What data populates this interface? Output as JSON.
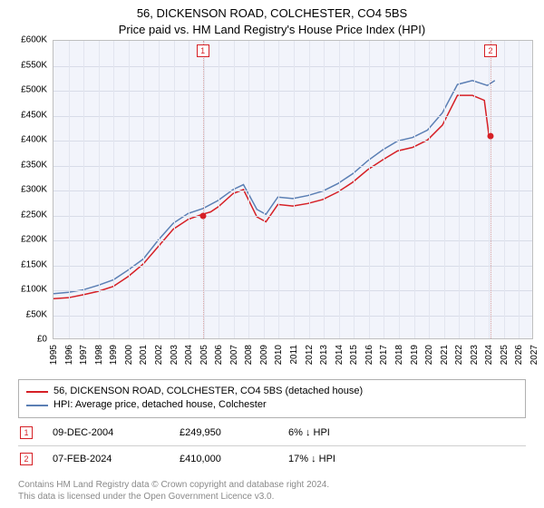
{
  "title": {
    "line1": "56, DICKENSON ROAD, COLCHESTER, CO4 5BS",
    "line2": "Price paid vs. HM Land Registry's House Price Index (HPI)",
    "fontsize": 13,
    "color": "#000000"
  },
  "chart": {
    "type": "line",
    "background_color": "#f2f4fb",
    "border_color": "#bfbfbf",
    "grid_color": "#d8dce8",
    "grid_color_v": "#e2e5ef",
    "xlim": [
      1995,
      2027
    ],
    "ylim": [
      0,
      600000
    ],
    "ytick_step": 50000,
    "yticks": [
      0,
      50000,
      100000,
      150000,
      200000,
      250000,
      300000,
      350000,
      400000,
      450000,
      500000,
      550000,
      600000
    ],
    "ytick_labels": [
      "£0",
      "£50K",
      "£100K",
      "£150K",
      "£200K",
      "£250K",
      "£300K",
      "£350K",
      "£400K",
      "£450K",
      "£500K",
      "£550K",
      "£600K"
    ],
    "xticks": [
      1995,
      1996,
      1997,
      1998,
      1999,
      2000,
      2001,
      2002,
      2003,
      2004,
      2005,
      2006,
      2007,
      2008,
      2009,
      2010,
      2011,
      2012,
      2013,
      2014,
      2015,
      2016,
      2017,
      2018,
      2019,
      2020,
      2021,
      2022,
      2023,
      2024,
      2025,
      2026,
      2027
    ],
    "label_fontsize": 10,
    "series": [
      {
        "name": "price_paid",
        "label": "56, DICKENSON ROAD, COLCHESTER, CO4 5BS (detached house)",
        "color": "#d62026",
        "line_width": 1.5,
        "x": [
          1995,
          1996,
          1997,
          1998,
          1999,
          2000,
          2001,
          2002,
          2003,
          2004,
          2004.94,
          2005.5,
          2006,
          2007,
          2007.7,
          2008.6,
          2009.2,
          2010,
          2011,
          2012,
          2013,
          2014,
          2015,
          2016,
          2017,
          2018,
          2019,
          2020,
          2021,
          2022,
          2023,
          2023.8,
          2024.1
        ],
        "y": [
          80000,
          82000,
          88000,
          95000,
          105000,
          125000,
          150000,
          185000,
          220000,
          240000,
          249950,
          255000,
          265000,
          292000,
          300000,
          245000,
          235000,
          270000,
          267000,
          272000,
          280000,
          295000,
          315000,
          340000,
          360000,
          378000,
          385000,
          400000,
          430000,
          490000,
          490000,
          480000,
          410000
        ]
      },
      {
        "name": "hpi",
        "label": "HPI: Average price, detached house, Colchester",
        "color": "#5b7fb4",
        "line_width": 1.5,
        "x": [
          1995,
          1996,
          1997,
          1998,
          1999,
          2000,
          2001,
          2002,
          2003,
          2004,
          2005,
          2006,
          2007,
          2007.7,
          2008.6,
          2009.2,
          2010,
          2011,
          2012,
          2013,
          2014,
          2015,
          2016,
          2017,
          2018,
          2019,
          2020,
          2021,
          2022,
          2023,
          2024,
          2024.5
        ],
        "y": [
          90000,
          93000,
          98000,
          107000,
          118000,
          138000,
          160000,
          198000,
          232000,
          252000,
          262000,
          278000,
          300000,
          310000,
          260000,
          250000,
          285000,
          282000,
          288000,
          297000,
          312000,
          332000,
          358000,
          380000,
          398000,
          405000,
          420000,
          455000,
          512000,
          520000,
          510000,
          520000
        ]
      }
    ],
    "markers": [
      {
        "id": "1",
        "x": 2004.94,
        "y": 249950,
        "color": "#d62026"
      },
      {
        "id": "2",
        "x": 2024.1,
        "y": 410000,
        "color": "#d62026"
      }
    ],
    "marker_label_color": "#d62026",
    "vlines": [
      {
        "x": 2004.94,
        "color": "#d6a0a0"
      },
      {
        "x": 2024.1,
        "color": "#d6a0a0"
      }
    ]
  },
  "legend": {
    "border_color": "#b0b0b0",
    "fontsize": 11,
    "items": [
      {
        "color": "#d62026",
        "label": "56, DICKENSON ROAD, COLCHESTER, CO4 5BS (detached house)"
      },
      {
        "color": "#5b7fb4",
        "label": "HPI: Average price, detached house, Colchester"
      }
    ]
  },
  "records": {
    "fontsize": 11,
    "rows": [
      {
        "marker": "1",
        "marker_color": "#d62026",
        "date": "09-DEC-2004",
        "price": "£249,950",
        "delta": "6%  ↓ HPI"
      },
      {
        "marker": "2",
        "marker_color": "#d62026",
        "date": "07-FEB-2024",
        "price": "£410,000",
        "delta": "17%  ↓ HPI"
      }
    ]
  },
  "footer": {
    "line1": "Contains HM Land Registry data © Crown copyright and database right 2024.",
    "line2": "This data is licensed under the Open Government Licence v3.0.",
    "color": "#8a8a8a",
    "fontsize": 10
  }
}
